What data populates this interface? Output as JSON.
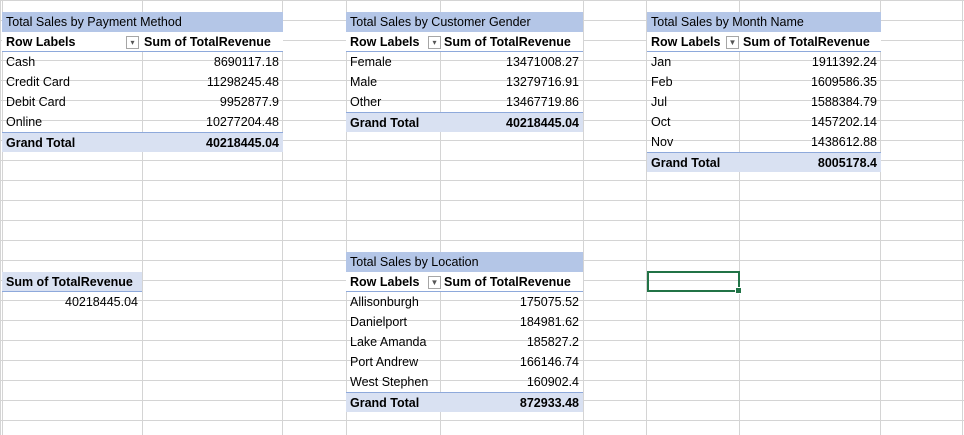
{
  "payment_pivot": {
    "title": "Total Sales by Payment Method",
    "row_labels_header": "Row Labels",
    "value_header": "Sum of TotalRevenue",
    "rows": [
      {
        "label": "Cash",
        "value": "8690117.18"
      },
      {
        "label": "Credit Card",
        "value": "11298245.48"
      },
      {
        "label": "Debit Card",
        "value": "9952877.9"
      },
      {
        "label": "Online",
        "value": "10277204.48"
      }
    ],
    "grand_total_label": "Grand Total",
    "grand_total_value": "40218445.04"
  },
  "gender_pivot": {
    "title": "Total Sales by Customer Gender",
    "row_labels_header": "Row Labels",
    "value_header": "Sum of TotalRevenue",
    "rows": [
      {
        "label": "Female",
        "value": "13471008.27"
      },
      {
        "label": "Male",
        "value": "13279716.91"
      },
      {
        "label": "Other",
        "value": "13467719.86"
      }
    ],
    "grand_total_label": "Grand Total",
    "grand_total_value": "40218445.04"
  },
  "month_pivot": {
    "title": "Total Sales by Month Name",
    "row_labels_header": "Row Labels",
    "value_header": "Sum of TotalRevenue",
    "rows": [
      {
        "label": "Jan",
        "value": "1911392.24"
      },
      {
        "label": "Feb",
        "value": "1609586.35"
      },
      {
        "label": "Jul",
        "value": "1588384.79"
      },
      {
        "label": "Oct",
        "value": "1457202.14"
      },
      {
        "label": "Nov",
        "value": "1438612.88"
      }
    ],
    "grand_total_label": "Grand Total",
    "grand_total_value": "8005178.4"
  },
  "location_pivot": {
    "title": "Total Sales by Location",
    "row_labels_header": "Row Labels",
    "value_header": "Sum of TotalRevenue",
    "rows": [
      {
        "label": "Allisonburgh",
        "value": "175075.52"
      },
      {
        "label": "Danielport",
        "value": "184981.62"
      },
      {
        "label": "Lake Amanda",
        "value": "185827.2"
      },
      {
        "label": "Port Andrew",
        "value": "166146.74"
      },
      {
        "label": "West Stephen",
        "value": "160902.4"
      }
    ],
    "grand_total_label": "Grand Total",
    "grand_total_value": "872933.48"
  },
  "total_card": {
    "header": "Sum of TotalRevenue",
    "value": "40218445.04"
  },
  "colors": {
    "title_fill": "#b4c6e7",
    "total_fill": "#d9e1f2",
    "selection": "#217346"
  }
}
